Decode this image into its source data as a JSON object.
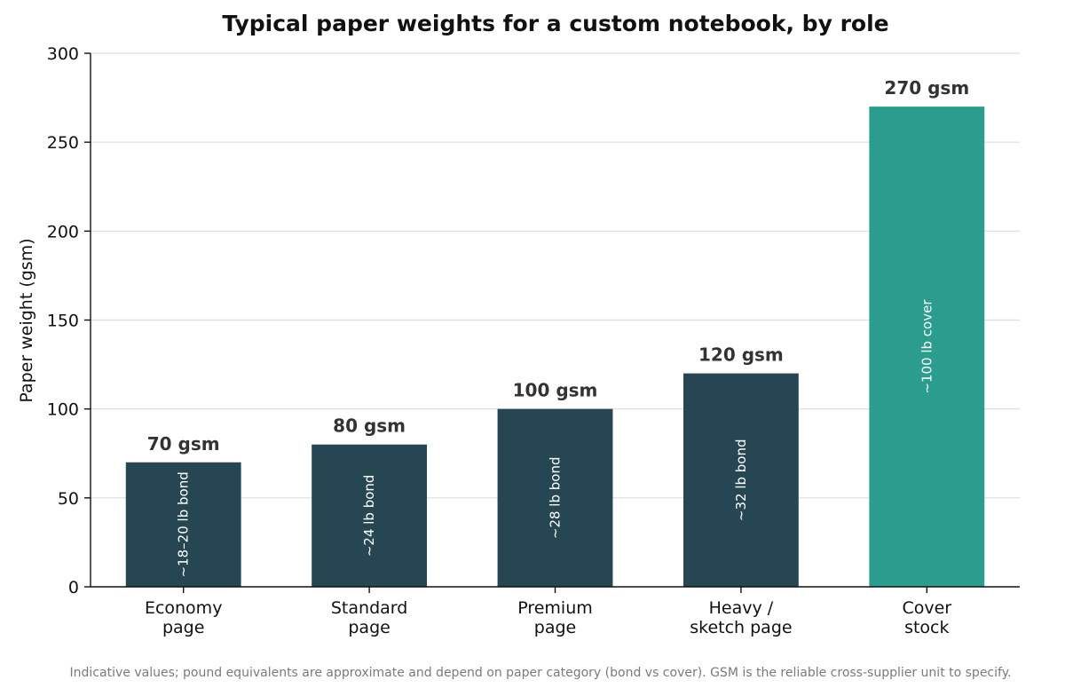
{
  "chart_data": {
    "type": "bar",
    "title": "Typical paper weights for a custom notebook, by role",
    "ylabel": "Paper weight (gsm)",
    "xlabel": "",
    "ylim": [
      0,
      300
    ],
    "yticks": [
      0,
      50,
      100,
      150,
      200,
      250,
      300
    ],
    "grid": "horizontal",
    "categories": [
      [
        "Economy",
        "page"
      ],
      [
        "Standard",
        "page"
      ],
      [
        "Premium",
        "page"
      ],
      [
        "Heavy /",
        "sketch page"
      ],
      [
        "Cover",
        "stock"
      ]
    ],
    "values": [
      70,
      80,
      100,
      120,
      270
    ],
    "value_labels": [
      "70 gsm",
      "80 gsm",
      "100 gsm",
      "120 gsm",
      "270 gsm"
    ],
    "inner_labels": [
      "~18–20 lb bond",
      "~24 lb bond",
      "~28 lb bond",
      "~32 lb bond",
      "~100 lb cover"
    ],
    "colors": [
      "#264653",
      "#264653",
      "#264653",
      "#264653",
      "#2a9d8f"
    ],
    "footnote": "Indicative values; pound equivalents are approximate and depend on paper category (bond vs cover). GSM is the reliable cross-supplier unit to specify."
  }
}
